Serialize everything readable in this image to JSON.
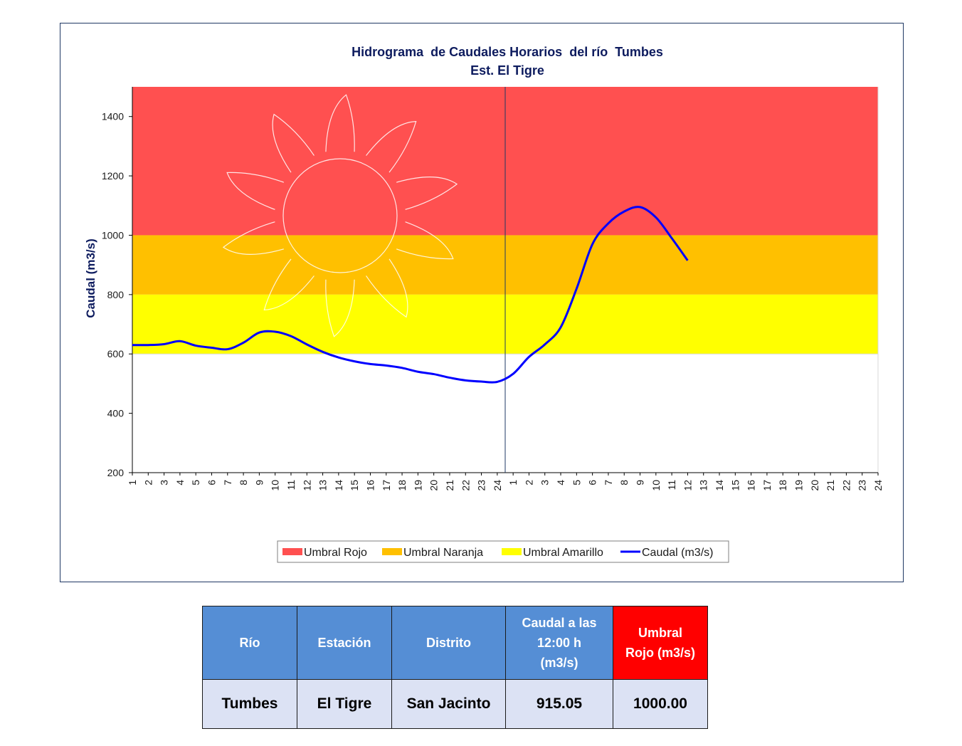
{
  "chart_data": {
    "type": "line",
    "title": "Hidrograma  de Caudales Horarios  del río  Tumbes",
    "subtitle": "Est. El Tigre",
    "xlabel": "",
    "ylabel": "Caudal (m3/s)",
    "ylim": [
      200,
      1500
    ],
    "yticks": [
      200,
      400,
      600,
      800,
      1000,
      1200,
      1400
    ],
    "x_tick_labels": [
      "1",
      "2",
      "3",
      "4",
      "5",
      "6",
      "7",
      "8",
      "9",
      "10",
      "11",
      "12",
      "13",
      "14",
      "15",
      "16",
      "17",
      "18",
      "19",
      "20",
      "21",
      "22",
      "23",
      "24",
      "1",
      "2",
      "3",
      "4",
      "5",
      "6",
      "7",
      "8",
      "9",
      "10",
      "11",
      "12",
      "13",
      "14",
      "15",
      "16",
      "17",
      "18",
      "19",
      "20",
      "21",
      "22",
      "23",
      "24"
    ],
    "day_divider_after_index": 24,
    "bands": [
      {
        "name": "Umbral Rojo",
        "from": 1000,
        "to": 1500,
        "color": "#ff5050"
      },
      {
        "name": "Umbral Naranja",
        "from": 800,
        "to": 1000,
        "color": "#ffc000"
      },
      {
        "name": "Umbral Amarillo",
        "from": 600,
        "to": 800,
        "color": "#ffff00"
      }
    ],
    "series": [
      {
        "name": "Caudal (m3/s)",
        "color": "#0000ff",
        "values": [
          630,
          630,
          633,
          643,
          628,
          621,
          616,
          638,
          672,
          675,
          660,
          632,
          607,
          588,
          575,
          566,
          561,
          553,
          540,
          532,
          520,
          511,
          507,
          506,
          533,
          590,
          632,
          690,
          820,
          970,
          1040,
          1080,
          1095,
          1060,
          990,
          915
        ]
      }
    ],
    "legend_position": "bottom",
    "grid": false
  },
  "table": {
    "headers": [
      {
        "line1": "Río"
      },
      {
        "line1": "Estación"
      },
      {
        "line1": "Distrito"
      },
      {
        "line1": "Caudal a las",
        "line2": "12:00 h",
        "line3": "(m3/s)"
      },
      {
        "line1": "Umbral",
        "line2": "Rojo (m3/s)"
      }
    ],
    "row": [
      "Tumbes",
      "El Tigre",
      "San Jacinto",
      "915.05",
      "1000.00"
    ]
  }
}
